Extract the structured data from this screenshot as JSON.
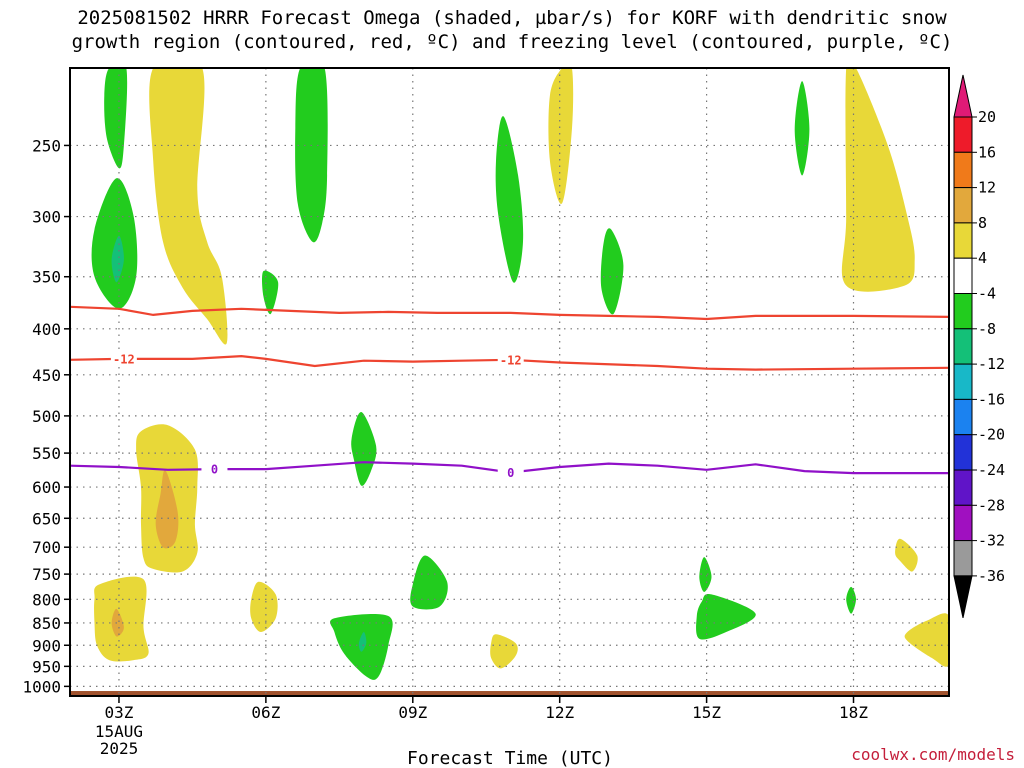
{
  "title": {
    "line1": "2025081502 HRRR Forecast Omega (shaded, µbar/s) for KORF with dendritic snow",
    "line2": "growth region (contoured, red, ºC) and freezing level (contoured, purple, ºC)"
  },
  "credit": "coolwx.com/models",
  "chart_data": {
    "type": "area",
    "title": "2025081502 HRRR Forecast Omega (shaded, µbar/s) for KORF with dendritic snow growth region (contoured, red, ºC) and freezing level (contoured, purple, ºC)",
    "xlabel": "Forecast Time (UTC)",
    "ylabel": "",
    "x_ticks": [
      {
        "h": 3,
        "label": "03Z",
        "sub": [
          "15AUG",
          "2025"
        ]
      },
      {
        "h": 6,
        "label": "06Z"
      },
      {
        "h": 9,
        "label": "09Z"
      },
      {
        "h": 12,
        "label": "12Z"
      },
      {
        "h": 15,
        "label": "15Z"
      },
      {
        "h": 18,
        "label": "18Z"
      }
    ],
    "xlim": [
      2.0,
      19.95
    ],
    "y_scale": "log",
    "y_ticks": [
      250,
      300,
      350,
      400,
      450,
      500,
      550,
      600,
      650,
      700,
      750,
      800,
      850,
      900,
      950,
      1000
    ],
    "ylim": [
      1025,
      205
    ],
    "grid": true,
    "colorbar": {
      "labels": [
        "20",
        "16",
        "12",
        "8",
        "4",
        "-4",
        "-8",
        "-12",
        "-16",
        "-20",
        "-24",
        "-28",
        "-32",
        "-36"
      ],
      "colors": [
        "#ee1b2a",
        "#f07a1a",
        "#e2a83c",
        "#e8d838",
        "#ffffff",
        "#22cc1e",
        "#14c078",
        "#18b8c8",
        "#1b82f0",
        "#2232d8",
        "#6014c8",
        "#a010c0",
        "#9a9a9a"
      ],
      "top_color": "#e01a76",
      "bottom_color": "#000000"
    },
    "contours": [
      {
        "name": "-12",
        "color": "#ee4430",
        "points": [
          [
            2,
            433
          ],
          [
            3,
            432
          ],
          [
            4.5,
            432
          ],
          [
            5.5,
            429
          ],
          [
            6,
            432
          ],
          [
            7,
            440
          ],
          [
            8,
            434
          ],
          [
            9,
            435
          ],
          [
            10,
            434
          ],
          [
            11,
            433
          ],
          [
            12,
            436
          ],
          [
            14,
            440
          ],
          [
            15,
            443
          ],
          [
            16,
            444
          ],
          [
            18,
            443
          ],
          [
            19.95,
            442
          ]
        ],
        "labels": [
          [
            3.1,
            432
          ],
          [
            11.0,
            433
          ]
        ]
      },
      {
        "name": "-8",
        "color": "#ee4430",
        "points": [
          [
            2,
            378
          ],
          [
            3,
            380
          ],
          [
            3.7,
            386
          ],
          [
            4.5,
            382
          ],
          [
            5.5,
            380
          ],
          [
            6.5,
            382
          ],
          [
            7.5,
            384
          ],
          [
            8.5,
            383
          ],
          [
            9.5,
            384
          ],
          [
            11,
            384
          ],
          [
            12,
            386
          ],
          [
            13,
            387
          ],
          [
            14,
            388
          ],
          [
            15,
            390
          ],
          [
            16,
            387
          ],
          [
            18,
            387
          ],
          [
            19.95,
            388
          ]
        ],
        "labels": []
      },
      {
        "name": "0",
        "color": "#9010c8",
        "points": [
          [
            2,
            568
          ],
          [
            3,
            570
          ],
          [
            4,
            574
          ],
          [
            5,
            573
          ],
          [
            6,
            573
          ],
          [
            7,
            568
          ],
          [
            8,
            563
          ],
          [
            9,
            565
          ],
          [
            10,
            568
          ],
          [
            11,
            578
          ],
          [
            12,
            570
          ],
          [
            13,
            565
          ],
          [
            14,
            568
          ],
          [
            15,
            574
          ],
          [
            16,
            566
          ],
          [
            17,
            576
          ],
          [
            18,
            579
          ],
          [
            19.95,
            579
          ]
        ],
        "labels": [
          [
            4.95,
            573
          ],
          [
            11.0,
            578
          ]
        ]
      }
    ],
    "shaded_regions": [
      {
        "value": 4,
        "color": "#e8d838",
        "points": [
          [
            3.7,
            205
          ],
          [
            4.7,
            205
          ],
          [
            4.6,
            280
          ],
          [
            4.8,
            320
          ],
          [
            5.1,
            350
          ],
          [
            5.2,
            415
          ],
          [
            4.8,
            390
          ],
          [
            4.3,
            360
          ],
          [
            3.9,
            320
          ],
          [
            3.7,
            260
          ]
        ]
      },
      {
        "value": 4,
        "color": "#e8d838",
        "points": [
          [
            12.05,
            205
          ],
          [
            12.25,
            205
          ],
          [
            12.25,
            240
          ],
          [
            12.05,
            290
          ],
          [
            11.8,
            260
          ],
          [
            11.8,
            220
          ]
        ]
      },
      {
        "value": 4,
        "color": "#e8d838",
        "points": [
          [
            17.85,
            205
          ],
          [
            18.05,
            205
          ],
          [
            18.7,
            250
          ],
          [
            19.1,
            300
          ],
          [
            19.25,
            335
          ],
          [
            19.05,
            358
          ],
          [
            17.85,
            358
          ],
          [
            17.85,
            300
          ]
        ]
      },
      {
        "value": 4,
        "color": "#e8d838",
        "points": [
          [
            3.45,
            520
          ],
          [
            4.0,
            512
          ],
          [
            4.55,
            545
          ],
          [
            4.6,
            600
          ],
          [
            4.55,
            660
          ],
          [
            4.6,
            710
          ],
          [
            4.3,
            745
          ],
          [
            3.7,
            740
          ],
          [
            3.5,
            720
          ],
          [
            3.45,
            660
          ],
          [
            3.45,
            600
          ],
          [
            3.35,
            545
          ]
        ]
      },
      {
        "value": 4,
        "color": "#e8d838",
        "points": [
          [
            2.6,
            770
          ],
          [
            3.5,
            760
          ],
          [
            3.5,
            860
          ],
          [
            3.6,
            920
          ],
          [
            3.3,
            935
          ],
          [
            2.8,
            935
          ],
          [
            2.55,
            900
          ],
          [
            2.5,
            850
          ],
          [
            2.5,
            800
          ]
        ]
      },
      {
        "value": 4,
        "color": "#e8d838",
        "points": [
          [
            5.85,
            765
          ],
          [
            6.2,
            790
          ],
          [
            6.2,
            840
          ],
          [
            5.9,
            870
          ],
          [
            5.7,
            840
          ],
          [
            5.7,
            800
          ]
        ]
      },
      {
        "value": 4,
        "color": "#e8d838",
        "points": [
          [
            10.7,
            875
          ],
          [
            11.1,
            895
          ],
          [
            11.1,
            925
          ],
          [
            10.8,
            955
          ],
          [
            10.6,
            930
          ],
          [
            10.6,
            895
          ]
        ]
      },
      {
        "value": 4,
        "color": "#e8d838",
        "points": [
          [
            18.95,
            685
          ],
          [
            19.3,
            715
          ],
          [
            19.2,
            745
          ],
          [
            18.95,
            725
          ],
          [
            18.85,
            710
          ]
        ]
      },
      {
        "value": 4,
        "color": "#e8d838",
        "points": [
          [
            19.95,
            835
          ],
          [
            19.95,
            945
          ],
          [
            19.6,
            930
          ],
          [
            19.1,
            890
          ],
          [
            19.1,
            870
          ],
          [
            19.5,
            845
          ]
        ]
      },
      {
        "value": 8,
        "color": "#e2a83c",
        "points": [
          [
            3.95,
            575
          ],
          [
            4.2,
            640
          ],
          [
            4.15,
            690
          ],
          [
            3.9,
            700
          ],
          [
            3.75,
            660
          ],
          [
            3.85,
            610
          ]
        ]
      },
      {
        "value": 8,
        "color": "#e2a83c",
        "points": [
          [
            2.95,
            820
          ],
          [
            3.1,
            860
          ],
          [
            2.95,
            880
          ],
          [
            2.85,
            850
          ]
        ]
      },
      {
        "value": -4,
        "color": "#22cc1e",
        "points": [
          [
            2.8,
            205
          ],
          [
            3.15,
            205
          ],
          [
            3.1,
            250
          ],
          [
            3.0,
            265
          ],
          [
            2.75,
            245
          ],
          [
            2.7,
            220
          ]
        ]
      },
      {
        "value": -4,
        "color": "#22cc1e",
        "points": [
          [
            2.95,
            272
          ],
          [
            3.3,
            300
          ],
          [
            3.35,
            350
          ],
          [
            3.0,
            380
          ],
          [
            2.5,
            350
          ],
          [
            2.5,
            310
          ]
        ]
      },
      {
        "value": -4,
        "color": "#22cc1e",
        "points": [
          [
            6.7,
            205
          ],
          [
            7.2,
            205
          ],
          [
            7.25,
            270
          ],
          [
            7.15,
            305
          ],
          [
            6.95,
            320
          ],
          [
            6.65,
            290
          ],
          [
            6.6,
            240
          ]
        ]
      },
      {
        "value": -4,
        "color": "#22cc1e",
        "points": [
          [
            5.95,
            345
          ],
          [
            6.25,
            355
          ],
          [
            6.1,
            385
          ],
          [
            5.95,
            368
          ]
        ]
      },
      {
        "value": -4,
        "color": "#22cc1e",
        "points": [
          [
            7.95,
            495
          ],
          [
            8.25,
            540
          ],
          [
            8.15,
            575
          ],
          [
            7.95,
            598
          ],
          [
            7.8,
            560
          ],
          [
            7.75,
            530
          ]
        ]
      },
      {
        "value": -4,
        "color": "#22cc1e",
        "points": [
          [
            9.25,
            715
          ],
          [
            9.7,
            765
          ],
          [
            9.55,
            815
          ],
          [
            9.0,
            815
          ],
          [
            9.0,
            770
          ]
        ]
      },
      {
        "value": -4,
        "color": "#22cc1e",
        "points": [
          [
            7.4,
            840
          ],
          [
            8.5,
            835
          ],
          [
            8.5,
            900
          ],
          [
            8.3,
            975
          ],
          [
            8.05,
            975
          ],
          [
            7.6,
            920
          ],
          [
            7.4,
            870
          ]
        ]
      },
      {
        "value": -4,
        "color": "#22cc1e",
        "points": [
          [
            10.85,
            232
          ],
          [
            11.15,
            270
          ],
          [
            11.25,
            320
          ],
          [
            11.05,
            355
          ],
          [
            10.75,
            300
          ],
          [
            10.7,
            260
          ]
        ]
      },
      {
        "value": -4,
        "color": "#22cc1e",
        "points": [
          [
            13.05,
            310
          ],
          [
            13.3,
            340
          ],
          [
            13.1,
            385
          ],
          [
            12.85,
            360
          ],
          [
            12.9,
            320
          ]
        ]
      },
      {
        "value": -4,
        "color": "#22cc1e",
        "points": [
          [
            14.95,
            718
          ],
          [
            15.1,
            755
          ],
          [
            14.95,
            785
          ],
          [
            14.85,
            755
          ]
        ]
      },
      {
        "value": -4,
        "color": "#22cc1e",
        "points": [
          [
            15.1,
            790
          ],
          [
            16.0,
            830
          ],
          [
            15.4,
            870
          ],
          [
            14.85,
            885
          ],
          [
            14.8,
            835
          ],
          [
            14.9,
            805
          ]
        ]
      },
      {
        "value": -4,
        "color": "#22cc1e",
        "points": [
          [
            16.95,
            212
          ],
          [
            17.1,
            240
          ],
          [
            16.95,
            270
          ],
          [
            16.8,
            240
          ]
        ]
      },
      {
        "value": -4,
        "color": "#22cc1e",
        "points": [
          [
            17.95,
            775
          ],
          [
            18.05,
            800
          ],
          [
            17.95,
            830
          ],
          [
            17.85,
            800
          ]
        ]
      },
      {
        "value": -8,
        "color": "#14c078",
        "points": [
          [
            3.0,
            315
          ],
          [
            3.1,
            335
          ],
          [
            2.95,
            355
          ],
          [
            2.85,
            335
          ]
        ]
      },
      {
        "value": -8,
        "color": "#14c078",
        "points": [
          [
            8.0,
            870
          ],
          [
            8.05,
            895
          ],
          [
            7.95,
            915
          ],
          [
            7.9,
            895
          ]
        ]
      }
    ],
    "ground": {
      "color": "#a0522d",
      "pressure_top": 1012
    }
  }
}
